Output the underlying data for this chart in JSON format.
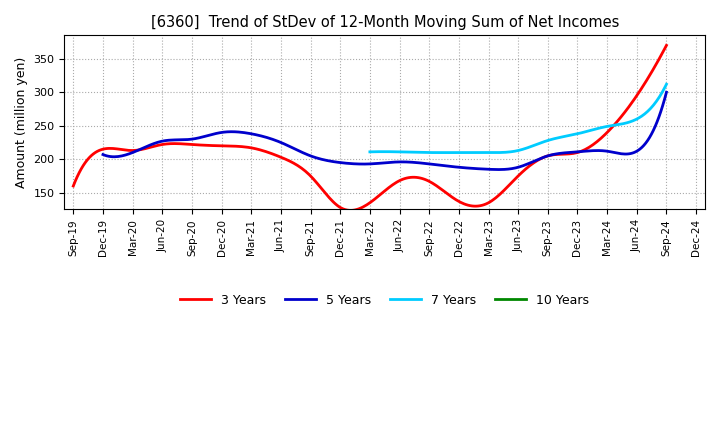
{
  "title": "[6360]  Trend of StDev of 12-Month Moving Sum of Net Incomes",
  "ylabel": "Amount (million yen)",
  "ylim": [
    125,
    385
  ],
  "yticks": [
    150,
    200,
    250,
    300,
    350
  ],
  "x_labels": [
    "Sep-19",
    "Dec-19",
    "Mar-20",
    "Jun-20",
    "Sep-20",
    "Dec-20",
    "Mar-21",
    "Jun-21",
    "Sep-21",
    "Dec-21",
    "Mar-22",
    "Jun-22",
    "Sep-22",
    "Dec-22",
    "Mar-23",
    "Jun-23",
    "Sep-23",
    "Dec-23",
    "Mar-24",
    "Jun-24",
    "Sep-24",
    "Dec-24"
  ],
  "series": {
    "3 Years": {
      "color": "#ff0000",
      "data": [
        160,
        215,
        213,
        222,
        222,
        220,
        217,
        203,
        175,
        128,
        135,
        168,
        167,
        137,
        135,
        175,
        205,
        210,
        240,
        295,
        370,
        null
      ]
    },
    "5 Years": {
      "color": "#0000cc",
      "data": [
        null,
        207,
        210,
        227,
        230,
        240,
        238,
        225,
        205,
        195,
        193,
        196,
        193,
        188,
        185,
        188,
        205,
        211,
        212,
        212,
        300,
        null
      ]
    },
    "7 Years": {
      "color": "#00ccff",
      "data": [
        null,
        null,
        null,
        null,
        null,
        null,
        null,
        null,
        null,
        null,
        211,
        211,
        210,
        210,
        210,
        213,
        228,
        238,
        249,
        260,
        312,
        null
      ]
    },
    "10 Years": {
      "color": "#008800",
      "data": [
        null,
        null,
        null,
        null,
        null,
        null,
        null,
        null,
        null,
        null,
        null,
        null,
        null,
        null,
        null,
        null,
        null,
        null,
        null,
        null,
        null,
        null
      ]
    }
  },
  "legend_labels": [
    "3 Years",
    "5 Years",
    "7 Years",
    "10 Years"
  ],
  "legend_colors": [
    "#ff0000",
    "#0000cc",
    "#00ccff",
    "#008800"
  ]
}
